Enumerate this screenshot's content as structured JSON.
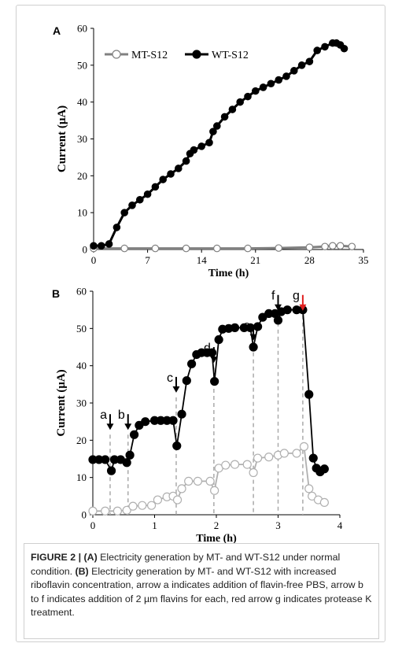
{
  "chart_data": [
    {
      "type": "line",
      "label": "A",
      "xlabel": "Time (h)",
      "ylabel": "Current (μA)",
      "xlim": [
        0,
        35
      ],
      "xticks": [
        0,
        7,
        14,
        21,
        28,
        35
      ],
      "ylim": [
        0,
        60
      ],
      "yticks": [
        0,
        10,
        20,
        30,
        40,
        50,
        60
      ],
      "legend": "upper left",
      "series": [
        {
          "name": "MT-S12",
          "color": "#808080",
          "marker_fill": "#ffffff",
          "x": [
            0,
            4,
            8,
            12,
            16,
            20,
            24,
            28,
            30,
            31,
            32,
            33.5
          ],
          "values": [
            0.3,
            0.3,
            0.3,
            0.3,
            0.3,
            0.3,
            0.4,
            0.6,
            0.8,
            1,
            1,
            0.8
          ]
        },
        {
          "name": "WT-S12",
          "color": "#000000",
          "marker_fill": "#000000",
          "x": [
            0,
            1,
            2,
            3,
            4,
            5,
            6,
            7,
            8,
            9,
            10,
            11,
            12,
            12.5,
            13,
            14,
            15,
            15.5,
            16,
            17,
            18,
            19,
            20,
            21,
            22,
            23,
            24,
            25,
            26,
            27,
            28,
            29,
            30,
            31,
            31.5,
            32,
            32.5
          ],
          "values": [
            1,
            1,
            1.5,
            6,
            10,
            12,
            13.5,
            15,
            17,
            19,
            20.5,
            22,
            24,
            26,
            27,
            28,
            29,
            32,
            33.5,
            36,
            38,
            40,
            41.5,
            43,
            44,
            45,
            46,
            47,
            48.5,
            50,
            51,
            54,
            55,
            56,
            56,
            55.5,
            54.5
          ]
        }
      ]
    },
    {
      "type": "line",
      "label": "B",
      "xlabel": "Time (h)",
      "ylabel": "Current (μA)",
      "xlim": [
        0,
        4
      ],
      "xticks": [
        0,
        1,
        2,
        3,
        4
      ],
      "ylim": [
        0,
        60
      ],
      "yticks": [
        0,
        10,
        20,
        30,
        40,
        50,
        60
      ],
      "series": [
        {
          "name": "MT-S12",
          "color": "#b0b0b0",
          "marker_fill": "#ffffff",
          "x": [
            0,
            0.2,
            0.4,
            0.55,
            0.65,
            0.8,
            0.95,
            1.05,
            1.2,
            1.3,
            1.37,
            1.44,
            1.55,
            1.7,
            1.9,
            1.97,
            2.04,
            2.15,
            2.3,
            2.5,
            2.6,
            2.67,
            2.85,
            3.0,
            3.1,
            3.3,
            3.42,
            3.5,
            3.55,
            3.65,
            3.75
          ],
          "values": [
            1,
            1,
            1,
            1.2,
            2.3,
            2.5,
            2.5,
            4,
            4.8,
            5,
            4,
            7,
            9,
            9,
            9,
            6.5,
            12.5,
            13.3,
            13.5,
            13.5,
            11.3,
            15.2,
            15.5,
            16,
            16.5,
            16.5,
            18.3,
            7,
            5,
            4,
            3.3
          ]
        },
        {
          "name": "WT-S12",
          "color": "#000000",
          "marker_fill": "#000000",
          "x": [
            0,
            0.1,
            0.2,
            0.3,
            0.35,
            0.45,
            0.55,
            0.6,
            0.67,
            0.75,
            0.85,
            1.0,
            1.1,
            1.2,
            1.3,
            1.36,
            1.44,
            1.52,
            1.6,
            1.68,
            1.76,
            1.85,
            1.93,
            1.97,
            2.04,
            2.1,
            2.2,
            2.3,
            2.45,
            2.55,
            2.6,
            2.67,
            2.75,
            2.85,
            2.95,
            3.0,
            3.05,
            3.15,
            3.3,
            3.4,
            3.5,
            3.57,
            3.62,
            3.68,
            3.75
          ],
          "values": [
            14.8,
            14.8,
            14.8,
            11.8,
            14.8,
            14.8,
            14,
            16,
            21.5,
            24,
            25,
            25.3,
            25.3,
            25.3,
            25.3,
            18.5,
            27,
            36,
            40.5,
            43,
            43.5,
            43.5,
            43.5,
            35.8,
            47,
            49.8,
            50,
            50.2,
            50.2,
            50.2,
            45,
            50.5,
            53,
            54,
            54,
            52.2,
            54.5,
            55,
            55,
            55,
            32.3,
            15.2,
            12.5,
            11.5,
            12.3
          ]
        }
      ],
      "annotations": [
        {
          "text": "a",
          "x": 0.28,
          "y": 27,
          "color": "#000000"
        },
        {
          "text": "b",
          "x": 0.57,
          "y": 27,
          "color": "#000000"
        },
        {
          "text": "c",
          "x": 1.35,
          "y": 37,
          "color": "#000000"
        },
        {
          "text": "d",
          "x": 1.96,
          "y": 45,
          "color": "#000000"
        },
        {
          "text": "e",
          "x": 2.6,
          "y": 51,
          "color": "#000000"
        },
        {
          "text": "f",
          "x": 3.0,
          "y": 59,
          "color": "#000000"
        },
        {
          "text": "g",
          "x": 3.4,
          "y": 59,
          "color": "#e02020"
        }
      ]
    }
  ],
  "caption": [
    {
      "text": "FIGURE 2 | (A)",
      "bold": true
    },
    {
      "text": " Electricity generation by MT- and WT-S12 under normal condition. "
    },
    {
      "text": "(B)",
      "bold": true
    },
    {
      "text": " Electricity generation by MT- and WT-S12 with increased riboflavin concentration, arrow a indicates addition of flavin-free PBS, arrow b to f indicates addition of 2 µm flavins for each, red arrow g indicates protease K treatment."
    }
  ]
}
